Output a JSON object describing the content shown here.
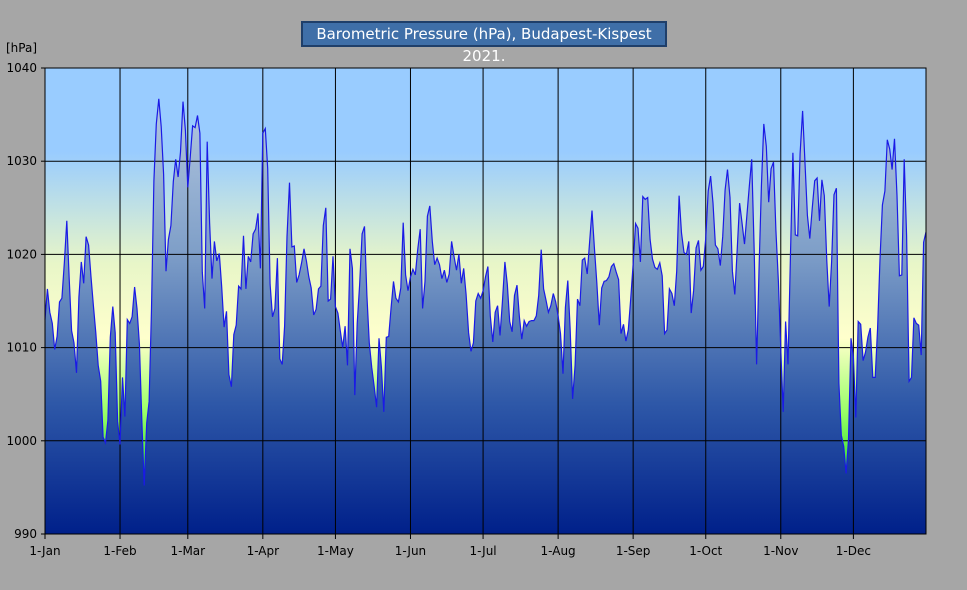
{
  "chart_data": {
    "type": "area",
    "title": "Barometric Pressure (hPa), Budapest-Kispest 2021.",
    "ylabel": "[hPa]",
    "xlabel": "",
    "ylim": [
      990,
      1040
    ],
    "yticks": [
      990,
      1000,
      1010,
      1020,
      1030,
      1040
    ],
    "xlim": [
      "2021-01-01",
      "2021-12-31"
    ],
    "xticks": [
      {
        "date": "2021-01-01",
        "label": "1-Jan"
      },
      {
        "date": "2021-02-01",
        "label": "1-Feb"
      },
      {
        "date": "2021-03-01",
        "label": "1-Mar"
      },
      {
        "date": "2021-04-01",
        "label": "1-Apr"
      },
      {
        "date": "2021-05-01",
        "label": "1-May"
      },
      {
        "date": "2021-06-01",
        "label": "1-Jun"
      },
      {
        "date": "2021-07-01",
        "label": "1-Jul"
      },
      {
        "date": "2021-08-01",
        "label": "1-Aug"
      },
      {
        "date": "2021-09-01",
        "label": "1-Sep"
      },
      {
        "date": "2021-10-01",
        "label": "1-Oct"
      },
      {
        "date": "2021-11-01",
        "label": "1-Nov"
      },
      {
        "date": "2021-12-01",
        "label": "1-Dec"
      }
    ],
    "grid": true,
    "colors": {
      "line": "#1a1ae6",
      "plot_bg": "#99ccff",
      "low": "#66ff66",
      "mid": "#ffffcc",
      "fill_top": "#a8c0dc",
      "fill_bottom": "#00208a"
    },
    "series": [
      {
        "x": [
          "2021-01-01",
          "2021-01-02",
          "2021-01-03",
          "2021-01-04",
          "2021-01-05",
          "2021-01-06",
          "2021-01-07",
          "2021-01-08",
          "2021-01-09",
          "2021-01-10",
          "2021-01-11",
          "2021-01-12",
          "2021-01-13",
          "2021-01-14",
          "2021-01-15",
          "2021-01-16",
          "2021-01-17",
          "2021-01-18",
          "2021-01-19",
          "2021-01-20",
          "2021-01-21",
          "2021-01-22",
          "2021-01-23",
          "2021-01-24",
          "2021-01-25",
          "2021-01-26",
          "2021-01-27",
          "2021-01-28",
          "2021-01-29",
          "2021-01-30",
          "2021-01-31",
          "2021-02-01",
          "2021-02-02",
          "2021-02-03",
          "2021-02-04",
          "2021-02-05",
          "2021-02-06",
          "2021-02-07",
          "2021-02-08",
          "2021-02-09",
          "2021-02-10",
          "2021-02-11",
          "2021-02-12",
          "2021-02-13",
          "2021-02-14",
          "2021-02-15",
          "2021-02-16",
          "2021-02-17",
          "2021-02-18",
          "2021-02-19",
          "2021-02-20",
          "2021-02-21",
          "2021-02-22",
          "2021-02-23",
          "2021-02-24",
          "2021-02-25",
          "2021-02-26",
          "2021-02-27",
          "2021-02-28",
          "2021-03-01",
          "2021-03-02",
          "2021-03-03",
          "2021-03-04",
          "2021-03-05",
          "2021-03-06",
          "2021-03-07",
          "2021-03-08",
          "2021-03-09",
          "2021-03-10",
          "2021-03-11",
          "2021-03-12",
          "2021-03-13",
          "2021-03-14",
          "2021-03-15",
          "2021-03-16",
          "2021-03-17",
          "2021-03-18",
          "2021-03-19",
          "2021-03-20",
          "2021-03-21",
          "2021-03-22",
          "2021-03-23",
          "2021-03-24",
          "2021-03-25",
          "2021-03-26",
          "2021-03-27",
          "2021-03-28",
          "2021-03-29",
          "2021-03-30",
          "2021-03-31",
          "2021-04-01",
          "2021-04-02",
          "2021-04-03",
          "2021-04-04",
          "2021-04-05",
          "2021-04-06",
          "2021-04-07",
          "2021-04-08",
          "2021-04-09",
          "2021-04-10",
          "2021-04-11",
          "2021-04-12",
          "2021-04-13",
          "2021-04-14",
          "2021-04-15",
          "2021-04-16",
          "2021-04-17",
          "2021-04-18",
          "2021-04-19",
          "2021-04-20",
          "2021-04-21",
          "2021-04-22",
          "2021-04-23",
          "2021-04-24",
          "2021-04-25",
          "2021-04-26",
          "2021-04-27",
          "2021-04-28",
          "2021-04-29",
          "2021-04-30",
          "2021-05-01",
          "2021-05-02",
          "2021-05-03",
          "2021-05-04",
          "2021-05-05",
          "2021-05-06",
          "2021-05-07",
          "2021-05-08",
          "2021-05-09",
          "2021-05-10",
          "2021-05-11",
          "2021-05-12",
          "2021-05-13",
          "2021-05-14",
          "2021-05-15",
          "2021-05-16",
          "2021-05-17",
          "2021-05-18",
          "2021-05-19",
          "2021-05-20",
          "2021-05-21",
          "2021-05-22",
          "2021-05-23",
          "2021-05-24",
          "2021-05-25",
          "2021-05-26",
          "2021-05-27",
          "2021-05-28",
          "2021-05-29",
          "2021-05-30",
          "2021-05-31",
          "2021-06-01",
          "2021-06-02",
          "2021-06-03",
          "2021-06-04",
          "2021-06-05",
          "2021-06-06",
          "2021-06-07",
          "2021-06-08",
          "2021-06-09",
          "2021-06-10",
          "2021-06-11",
          "2021-06-12",
          "2021-06-13",
          "2021-06-14",
          "2021-06-15",
          "2021-06-16",
          "2021-06-17",
          "2021-06-18",
          "2021-06-19",
          "2021-06-20",
          "2021-06-21",
          "2021-06-22",
          "2021-06-23",
          "2021-06-24",
          "2021-06-25",
          "2021-06-26",
          "2021-06-27",
          "2021-06-28",
          "2021-06-29",
          "2021-06-30",
          "2021-07-01",
          "2021-07-02",
          "2021-07-03",
          "2021-07-04",
          "2021-07-05",
          "2021-07-06",
          "2021-07-07",
          "2021-07-08",
          "2021-07-09",
          "2021-07-10",
          "2021-07-11",
          "2021-07-12",
          "2021-07-13",
          "2021-07-14",
          "2021-07-15",
          "2021-07-16",
          "2021-07-17",
          "2021-07-18",
          "2021-07-19",
          "2021-07-20",
          "2021-07-21",
          "2021-07-22",
          "2021-07-23",
          "2021-07-24",
          "2021-07-25",
          "2021-07-26",
          "2021-07-27",
          "2021-07-28",
          "2021-07-29",
          "2021-07-30",
          "2021-07-31",
          "2021-08-01",
          "2021-08-02",
          "2021-08-03",
          "2021-08-04",
          "2021-08-05",
          "2021-08-06",
          "2021-08-07",
          "2021-08-08",
          "2021-08-09",
          "2021-08-10",
          "2021-08-11",
          "2021-08-12",
          "2021-08-13",
          "2021-08-14",
          "2021-08-15",
          "2021-08-16",
          "2021-08-17",
          "2021-08-18",
          "2021-08-19",
          "2021-08-20",
          "2021-08-21",
          "2021-08-22",
          "2021-08-23",
          "2021-08-24",
          "2021-08-25",
          "2021-08-26",
          "2021-08-27",
          "2021-08-28",
          "2021-08-29",
          "2021-08-30",
          "2021-08-31",
          "2021-09-01",
          "2021-09-02",
          "2021-09-03",
          "2021-09-04",
          "2021-09-05",
          "2021-09-06",
          "2021-09-07",
          "2021-09-08",
          "2021-09-09",
          "2021-09-10",
          "2021-09-11",
          "2021-09-12",
          "2021-09-13",
          "2021-09-14",
          "2021-09-15",
          "2021-09-16",
          "2021-09-17",
          "2021-09-18",
          "2021-09-19",
          "2021-09-20",
          "2021-09-21",
          "2021-09-22",
          "2021-09-23",
          "2021-09-24",
          "2021-09-25",
          "2021-09-26",
          "2021-09-27",
          "2021-09-28",
          "2021-09-29",
          "2021-09-30",
          "2021-10-01",
          "2021-10-02",
          "2021-10-03",
          "2021-10-04",
          "2021-10-05",
          "2021-10-06",
          "2021-10-07",
          "2021-10-08",
          "2021-10-09",
          "2021-10-10",
          "2021-10-11",
          "2021-10-12",
          "2021-10-13",
          "2021-10-14",
          "2021-10-15",
          "2021-10-16",
          "2021-10-17",
          "2021-10-18",
          "2021-10-19",
          "2021-10-20",
          "2021-10-21",
          "2021-10-22",
          "2021-10-23",
          "2021-10-24",
          "2021-10-25",
          "2021-10-26",
          "2021-10-27",
          "2021-10-28",
          "2021-10-29",
          "2021-10-30",
          "2021-10-31",
          "2021-11-01",
          "2021-11-02",
          "2021-11-03",
          "2021-11-04",
          "2021-11-05",
          "2021-11-06",
          "2021-11-07",
          "2021-11-08",
          "2021-11-09",
          "2021-11-10",
          "2021-11-11",
          "2021-11-12",
          "2021-11-13",
          "2021-11-14",
          "2021-11-15",
          "2021-11-16",
          "2021-11-17",
          "2021-11-18",
          "2021-11-19",
          "2021-11-20",
          "2021-11-21",
          "2021-11-22",
          "2021-11-23",
          "2021-11-24",
          "2021-11-25",
          "2021-11-26",
          "2021-11-27",
          "2021-11-28",
          "2021-11-29",
          "2021-11-30",
          "2021-12-01",
          "2021-12-02",
          "2021-12-03",
          "2021-12-04",
          "2021-12-05",
          "2021-12-06",
          "2021-12-07",
          "2021-12-08",
          "2021-12-09",
          "2021-12-10",
          "2021-12-11",
          "2021-12-12",
          "2021-12-13",
          "2021-12-14",
          "2021-12-15",
          "2021-12-16",
          "2021-12-17",
          "2021-12-18",
          "2021-12-19",
          "2021-12-20",
          "2021-12-21",
          "2021-12-22",
          "2021-12-23",
          "2021-12-24",
          "2021-12-25",
          "2021-12-26",
          "2021-12-27",
          "2021-12-28",
          "2021-12-29",
          "2021-12-30",
          "2021-12-31"
        ],
        "values": [
          1013.0,
          1016.3,
          1013.8,
          1012.6,
          1009.8,
          1011.2,
          1014.9,
          1015.3,
          1019.2,
          1023.6,
          1017.4,
          1011.8,
          1010.5,
          1007.3,
          1015.4,
          1019.2,
          1016.9,
          1021.9,
          1021.0,
          1017.6,
          1014.5,
          1011.6,
          1008.1,
          1006.4,
          1000.4,
          999.8,
          1002.2,
          1011.1,
          1014.4,
          1011.6,
          1002.1,
          999.6,
          1006.8,
          1002.6,
          1013.0,
          1012.6,
          1013.3,
          1016.5,
          1014.2,
          1010.4,
          1002.3,
          995.2,
          1001.9,
          1004.2,
          1014.2,
          1027.9,
          1034.0,
          1036.7,
          1033.7,
          1028.6,
          1018.2,
          1021.6,
          1023.1,
          1027.8,
          1030.2,
          1028.3,
          1031.0,
          1036.4,
          1033.3,
          1027.2,
          1030.4,
          1033.8,
          1033.6,
          1034.9,
          1033.0,
          1018.1,
          1014.2,
          1032.1,
          1023.4,
          1017.4,
          1021.4,
          1019.3,
          1020.1,
          1016.5,
          1012.2,
          1013.9,
          1007.1,
          1005.8,
          1011.4,
          1012.4,
          1016.6,
          1016.3,
          1022.0,
          1016.3,
          1019.8,
          1019.2,
          1022.2,
          1022.7,
          1024.4,
          1018.5,
          1033.0,
          1033.5,
          1029.2,
          1016.8,
          1013.3,
          1014.2,
          1019.6,
          1008.8,
          1008.2,
          1012.3,
          1021.9,
          1027.7,
          1020.8,
          1020.9,
          1017.0,
          1017.8,
          1019.1,
          1020.6,
          1019.3,
          1017.6,
          1016.4,
          1013.5,
          1014.1,
          1016.3,
          1016.6,
          1023.1,
          1025.0,
          1015.0,
          1015.2,
          1019.8,
          1014.4,
          1013.7,
          1011.8,
          1010.0,
          1012.3,
          1008.1,
          1020.6,
          1018.5,
          1004.9,
          1012.6,
          1016.7,
          1022.2,
          1023.0,
          1015.6,
          1010.5,
          1007.9,
          1005.8,
          1003.6,
          1011.0,
          1007.9,
          1003.1,
          1011.1,
          1011.2,
          1014.3,
          1017.1,
          1015.3,
          1014.9,
          1016.4,
          1023.4,
          1017.8,
          1016.1,
          1017.6,
          1018.4,
          1017.8,
          1020.5,
          1022.7,
          1014.2,
          1017.1,
          1024.1,
          1025.2,
          1021.4,
          1018.9,
          1019.6,
          1018.9,
          1017.4,
          1018.3,
          1017.0,
          1017.9,
          1021.4,
          1019.8,
          1018.3,
          1020.0,
          1016.9,
          1018.5,
          1015.7,
          1011.6,
          1009.6,
          1010.5,
          1015.0,
          1015.8,
          1015.3,
          1016.1,
          1017.6,
          1018.7,
          1013.4,
          1010.6,
          1013.8,
          1014.5,
          1011.3,
          1014.9,
          1019.2,
          1016.8,
          1012.8,
          1011.7,
          1015.6,
          1016.7,
          1013.3,
          1010.9,
          1012.9,
          1012.3,
          1012.8,
          1012.9,
          1012.9,
          1013.4,
          1015.6,
          1020.5,
          1016.3,
          1015.1,
          1013.8,
          1014.5,
          1015.8,
          1014.9,
          1013.4,
          1011.5,
          1007.2,
          1014.3,
          1017.2,
          1011.9,
          1004.5,
          1008.1,
          1015.2,
          1014.5,
          1019.4,
          1019.6,
          1017.9,
          1021.3,
          1024.7,
          1020.7,
          1017.0,
          1012.4,
          1016.4,
          1017.1,
          1017.2,
          1017.6,
          1018.7,
          1019.0,
          1018.1,
          1017.3,
          1011.5,
          1012.5,
          1010.7,
          1011.9,
          1015.2,
          1018.9,
          1023.3,
          1022.8,
          1019.2,
          1026.2,
          1025.9,
          1026.1,
          1021.6,
          1019.5,
          1018.6,
          1018.4,
          1019.1,
          1017.7,
          1011.5,
          1011.9,
          1016.3,
          1015.8,
          1014.5,
          1018.2,
          1026.3,
          1022.3,
          1020.2,
          1020.0,
          1021.4,
          1013.7,
          1016.1,
          1020.7,
          1021.5,
          1018.3,
          1018.7,
          1021.8,
          1026.8,
          1028.4,
          1025.5,
          1021.0,
          1020.6,
          1018.8,
          1021.9,
          1026.9,
          1029.1,
          1026.1,
          1018.2,
          1015.7,
          1020.5,
          1025.5,
          1023.3,
          1021.1,
          1024.2,
          1027.3,
          1030.2,
          1020.4,
          1008.2,
          1018.3,
          1027.3,
          1034.0,
          1031.6,
          1025.6,
          1029.2,
          1029.9,
          1022.6,
          1017.1,
          1009.8,
          1003.1,
          1012.8,
          1008.2,
          1020.1,
          1030.9,
          1022.1,
          1022.0,
          1030.8,
          1035.4,
          1029.8,
          1024.2,
          1021.7,
          1024.9,
          1027.9,
          1028.2,
          1023.6,
          1028.0,
          1026.3,
          1019.3,
          1014.4,
          1019.2,
          1026.4,
          1027.1,
          1006.2,
          1000.6,
          999.4,
          996.5,
          1000.1,
          1011.0,
          1009.0,
          1002.5,
          1012.8,
          1012.5,
          1008.6,
          1009.5,
          1011.1,
          1012.1,
          1006.8,
          1006.8,
          1012.1,
          1019.5,
          1025.3,
          1026.8,
          1032.3,
          1031.3,
          1029.1,
          1032.4,
          1026.3,
          1017.7,
          1017.8,
          1030.2,
          1022.0,
          1006.4,
          1006.8,
          1013.2,
          1012.6,
          1012.4,
          1009.2,
          1021.3,
          1022.4
        ]
      }
    ]
  }
}
